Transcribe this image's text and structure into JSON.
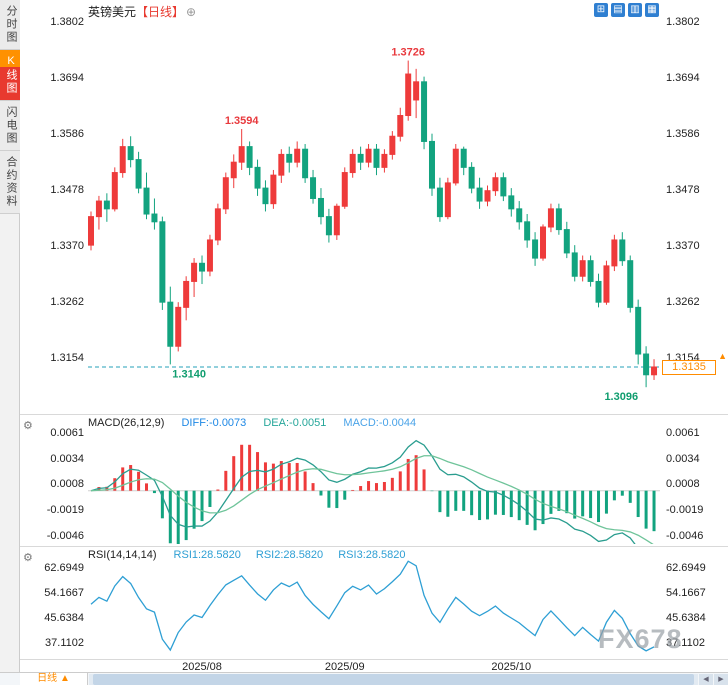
{
  "app": {
    "title": "英镑美元",
    "period": "【日线】",
    "add_icon": "⊕",
    "toolbar_icons": [
      "⊞",
      "▤",
      "▥",
      "▦"
    ]
  },
  "sidebar": {
    "items": [
      {
        "label": "分时图",
        "active": false
      },
      {
        "label": "K线图",
        "active": true
      },
      {
        "label": "闪电图",
        "active": false
      },
      {
        "label": "合约资料",
        "active": false
      }
    ]
  },
  "icons": {
    "gear": "⚙",
    "up_arrow": "▲",
    "left_arrow": "◀",
    "right_arrow": "▶"
  },
  "colors": {
    "up": "#ee3b3b",
    "down": "#12a37f",
    "diff_line": "#2a9d8f",
    "dea_line": "#6fc49a",
    "rsi_line": "#2e9fd4",
    "price_line": "#26a1ba",
    "accent_orange": "#ff8c00",
    "annotation_up": "#e8393d",
    "annotation_down": "#0f9d6e"
  },
  "bottom": {
    "period_label": "日线",
    "arrow": "▲"
  },
  "watermark": "FX678",
  "chart_data": {
    "type": "candlestick",
    "symbol": "英镑美元",
    "timeframe": "日线",
    "current_price": 1.3135,
    "current_price_label": "1.3135",
    "y_ticks": [
      1.3802,
      1.3694,
      1.3586,
      1.3478,
      1.337,
      1.3262,
      1.3154
    ],
    "x_ticks": [
      {
        "index": 14,
        "label": "2025/08"
      },
      {
        "index": 32,
        "label": "2025/09"
      },
      {
        "index": 53,
        "label": "2025/10"
      }
    ],
    "annotations": [
      {
        "index": 40,
        "value": 1.3726,
        "text": "1.3726",
        "color": "#e8393d",
        "side": "above",
        "anchor": "middle",
        "dx": 0
      },
      {
        "index": 19,
        "value": 1.3594,
        "text": "1.3594",
        "color": "#e8393d",
        "side": "above",
        "anchor": "middle",
        "dx": 0
      },
      {
        "index": 10,
        "value": 1.314,
        "text": "1.3140",
        "color": "#0f9d6e",
        "side": "below",
        "anchor": "start",
        "dx": 2
      },
      {
        "index": 70,
        "value": 1.3096,
        "text": "1.3096",
        "color": "#0f9d6e",
        "side": "below",
        "anchor": "end",
        "dx": -8
      }
    ],
    "ohlc": [
      [
        1.337,
        1.3435,
        1.336,
        1.3425
      ],
      [
        1.3425,
        1.3465,
        1.34,
        1.3455
      ],
      [
        1.3455,
        1.347,
        1.3415,
        1.344
      ],
      [
        1.344,
        1.352,
        1.3435,
        1.351
      ],
      [
        1.351,
        1.3575,
        1.35,
        1.356
      ],
      [
        1.356,
        1.358,
        1.352,
        1.3535
      ],
      [
        1.3535,
        1.355,
        1.347,
        1.348
      ],
      [
        1.348,
        1.351,
        1.342,
        1.343
      ],
      [
        1.343,
        1.346,
        1.34,
        1.3415
      ],
      [
        1.3415,
        1.3425,
        1.3245,
        1.326
      ],
      [
        1.326,
        1.329,
        1.314,
        1.3175
      ],
      [
        1.3175,
        1.326,
        1.3165,
        1.325
      ],
      [
        1.325,
        1.331,
        1.3225,
        1.33
      ],
      [
        1.33,
        1.3345,
        1.327,
        1.3335
      ],
      [
        1.3335,
        1.335,
        1.3295,
        1.332
      ],
      [
        1.332,
        1.339,
        1.331,
        1.338
      ],
      [
        1.338,
        1.345,
        1.337,
        1.344
      ],
      [
        1.344,
        1.351,
        1.343,
        1.35
      ],
      [
        1.35,
        1.3545,
        1.348,
        1.353
      ],
      [
        1.353,
        1.3594,
        1.3515,
        1.356
      ],
      [
        1.356,
        1.357,
        1.3505,
        1.352
      ],
      [
        1.352,
        1.3535,
        1.3465,
        1.348
      ],
      [
        1.348,
        1.3495,
        1.3435,
        1.345
      ],
      [
        1.345,
        1.3515,
        1.344,
        1.3505
      ],
      [
        1.3505,
        1.3555,
        1.349,
        1.3545
      ],
      [
        1.3545,
        1.356,
        1.351,
        1.353
      ],
      [
        1.353,
        1.357,
        1.352,
        1.3555
      ],
      [
        1.3555,
        1.3565,
        1.349,
        1.35
      ],
      [
        1.35,
        1.3515,
        1.345,
        1.346
      ],
      [
        1.346,
        1.348,
        1.341,
        1.3425
      ],
      [
        1.3425,
        1.344,
        1.3375,
        1.339
      ],
      [
        1.339,
        1.345,
        1.338,
        1.3445
      ],
      [
        1.3445,
        1.352,
        1.344,
        1.351
      ],
      [
        1.351,
        1.3555,
        1.35,
        1.3545
      ],
      [
        1.3545,
        1.356,
        1.3515,
        1.353
      ],
      [
        1.353,
        1.3565,
        1.352,
        1.3555
      ],
      [
        1.3555,
        1.3565,
        1.3505,
        1.352
      ],
      [
        1.352,
        1.3555,
        1.351,
        1.3545
      ],
      [
        1.3545,
        1.359,
        1.3535,
        1.358
      ],
      [
        1.358,
        1.3635,
        1.357,
        1.362
      ],
      [
        1.362,
        1.3726,
        1.361,
        1.37
      ],
      [
        1.365,
        1.371,
        1.3615,
        1.3685
      ],
      [
        1.3685,
        1.3695,
        1.3555,
        1.357
      ],
      [
        1.357,
        1.3585,
        1.3465,
        1.348
      ],
      [
        1.348,
        1.35,
        1.3415,
        1.3425
      ],
      [
        1.3425,
        1.35,
        1.342,
        1.349
      ],
      [
        1.349,
        1.3565,
        1.3485,
        1.3555
      ],
      [
        1.3555,
        1.356,
        1.3505,
        1.352
      ],
      [
        1.352,
        1.353,
        1.347,
        1.348
      ],
      [
        1.348,
        1.35,
        1.344,
        1.3455
      ],
      [
        1.3455,
        1.3485,
        1.3445,
        1.3475
      ],
      [
        1.3475,
        1.351,
        1.3465,
        1.35
      ],
      [
        1.35,
        1.351,
        1.3455,
        1.3465
      ],
      [
        1.3465,
        1.348,
        1.3425,
        1.344
      ],
      [
        1.344,
        1.3455,
        1.34,
        1.3415
      ],
      [
        1.3415,
        1.343,
        1.3365,
        1.338
      ],
      [
        1.338,
        1.3395,
        1.333,
        1.3345
      ],
      [
        1.3345,
        1.341,
        1.334,
        1.3405
      ],
      [
        1.3405,
        1.345,
        1.3395,
        1.344
      ],
      [
        1.344,
        1.345,
        1.339,
        1.34
      ],
      [
        1.34,
        1.3415,
        1.3345,
        1.3355
      ],
      [
        1.3355,
        1.337,
        1.33,
        1.331
      ],
      [
        1.331,
        1.335,
        1.33,
        1.334
      ],
      [
        1.334,
        1.335,
        1.329,
        1.33
      ],
      [
        1.33,
        1.3315,
        1.325,
        1.326
      ],
      [
        1.326,
        1.334,
        1.3255,
        1.333
      ],
      [
        1.333,
        1.339,
        1.332,
        1.338
      ],
      [
        1.338,
        1.3395,
        1.333,
        1.334
      ],
      [
        1.334,
        1.335,
        1.324,
        1.325
      ],
      [
        1.325,
        1.3265,
        1.314,
        1.316
      ],
      [
        1.316,
        1.3175,
        1.3096,
        1.312
      ],
      [
        1.312,
        1.315,
        1.311,
        1.3135
      ]
    ],
    "indicators": {
      "macd": {
        "title": "MACD(26,12,9)",
        "diff_label": "DIFF:-0.0073",
        "dea_label": "DEA:-0.0051",
        "macd_label": "MACD:-0.0044",
        "params": [
          26,
          12,
          9
        ],
        "diff": -0.0073,
        "dea": -0.0051,
        "macd": -0.0044,
        "y_ticks": [
          0.0061,
          0.0034,
          0.0008,
          -0.0019,
          -0.0046
        ]
      },
      "rsi": {
        "title": "RSI(14,14,14)",
        "rsi1_label": "RSI1:28.5820",
        "rsi2_label": "RSI2:28.5820",
        "rsi3_label": "RSI3:28.5820",
        "params": [
          14,
          14,
          14
        ],
        "rsi1": 28.582,
        "rsi2": 28.582,
        "rsi3": 28.582,
        "y_ticks": [
          62.6949,
          54.1667,
          45.6384,
          37.1102
        ]
      }
    }
  }
}
